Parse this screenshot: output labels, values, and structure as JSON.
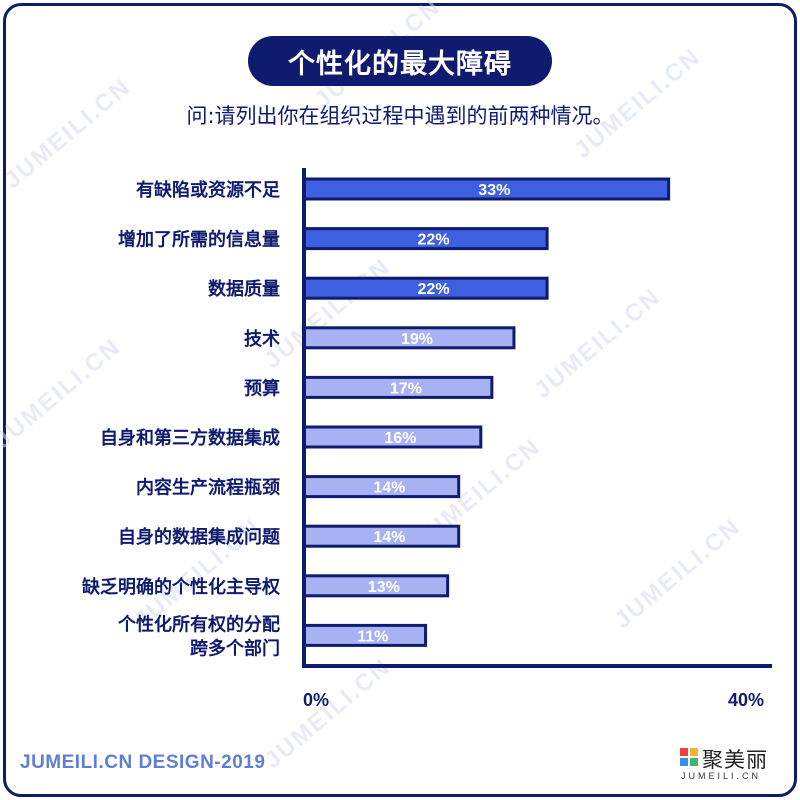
{
  "title": "个性化的最大障碍",
  "subtitle": "问:请列出你在组织过程中遇到的前两种情况。",
  "footer": {
    "left": "JUMEILI.CN DESIGN-2019",
    "logo_name": "聚美丽",
    "logo_sub": "JUMEILI.CN"
  },
  "watermark": "JUMEILI.CN",
  "colors": {
    "navy": "#0f1b6e",
    "bar_dark": "#3d5fe0",
    "bar_light": "#a7b2f2",
    "footer_blue": "#5f7fd6",
    "logo": [
      "#e9433b",
      "#f2b233",
      "#3b8de9",
      "#3fb86b"
    ]
  },
  "chart_data": {
    "type": "bar",
    "orientation": "horizontal",
    "categories": [
      [
        "有缺陷或资源不足"
      ],
      [
        "增加了所需的信息量"
      ],
      [
        "数据质量"
      ],
      [
        "技术"
      ],
      [
        "预算"
      ],
      [
        "自身和第三方数据集成"
      ],
      [
        "内容生产流程瓶颈"
      ],
      [
        "自身的数据集成问题"
      ],
      [
        "缺乏明确的个性化主导权"
      ],
      [
        "个性化所有权的分配",
        "跨多个部门"
      ]
    ],
    "values": [
      33,
      22,
      22,
      19,
      17,
      16,
      14,
      14,
      13,
      11
    ],
    "value_labels": [
      "33%",
      "22%",
      "22%",
      "19%",
      "17%",
      "16%",
      "14%",
      "14%",
      "13%",
      "11%"
    ],
    "highlight": [
      true,
      true,
      true,
      false,
      false,
      false,
      false,
      false,
      false,
      false
    ],
    "xlim": [
      0,
      40
    ],
    "x_ticks": [
      "0%",
      "40%"
    ],
    "grid": false
  }
}
